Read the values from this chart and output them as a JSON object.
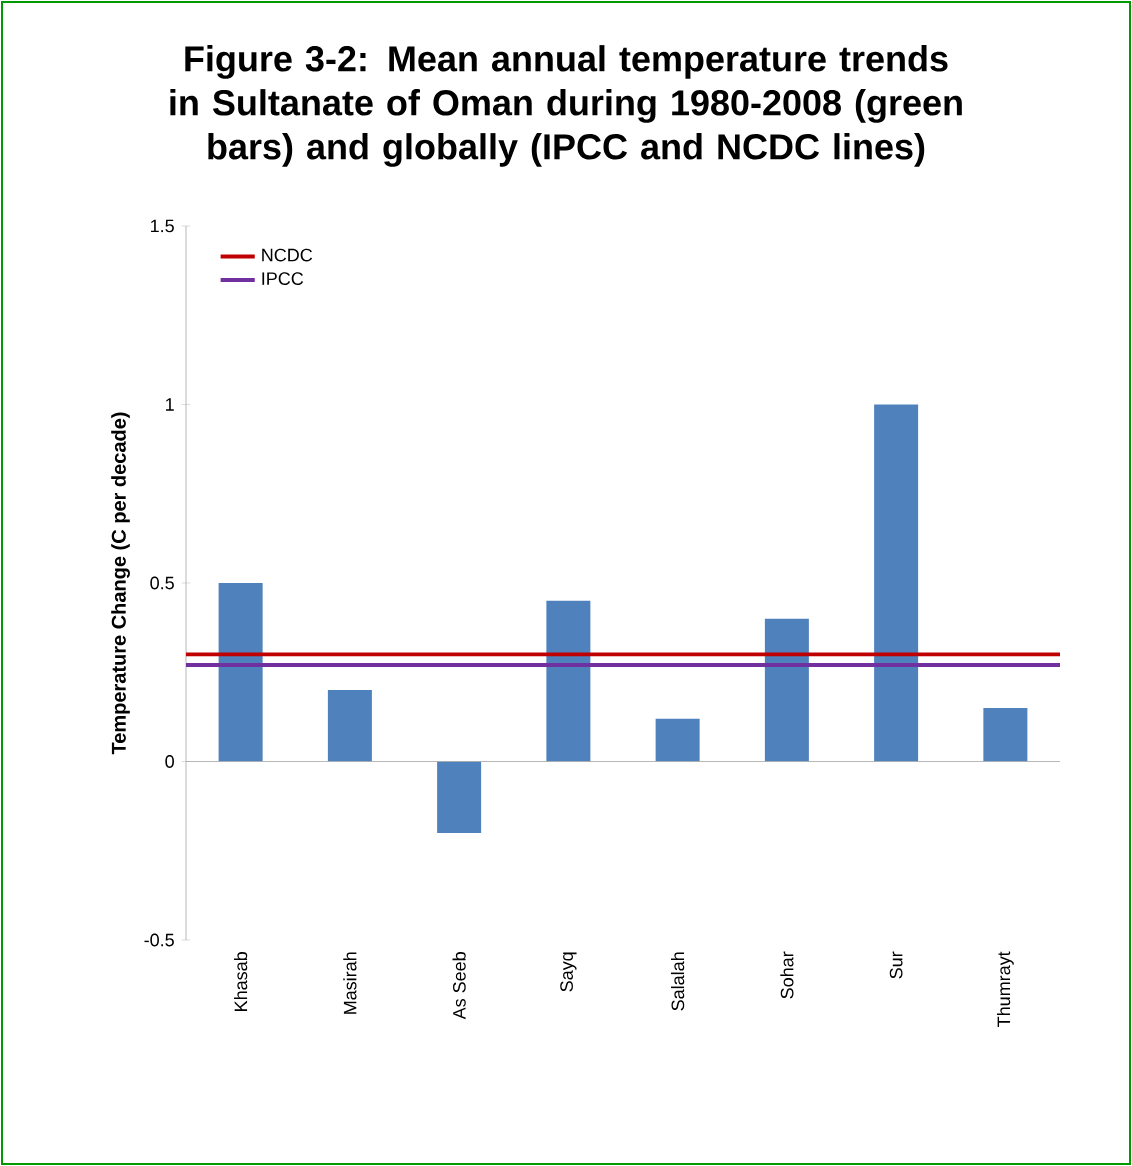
{
  "chart_data": {
    "type": "bar",
    "title": "Figure 3-2: Mean annual temperature trends in Sultanate of Oman during 1980-2008 (green bars) and globally (IPCC and NCDC lines)",
    "ylabel": "Temperature Change (C per decade)",
    "categories": [
      "Khasab",
      "Masirah",
      "As Seeb",
      "Sayq",
      "Salalah",
      "Sohar",
      "Sur",
      "Thumrayt"
    ],
    "values": [
      0.5,
      0.2,
      -0.2,
      0.45,
      0.12,
      0.4,
      1.0,
      0.15
    ],
    "color": "#4f81bd",
    "ylim": [
      -0.5,
      1.5
    ],
    "yticks": [
      -0.5,
      0,
      0.5,
      1,
      1.5
    ],
    "legend": "top left",
    "ref_lines": [
      {
        "axis": "y",
        "value": 0.3,
        "label": "NCDC",
        "color": "#c00000"
      },
      {
        "axis": "y",
        "value": 0.27,
        "label": "IPCC",
        "color": "#7030a0"
      }
    ]
  }
}
